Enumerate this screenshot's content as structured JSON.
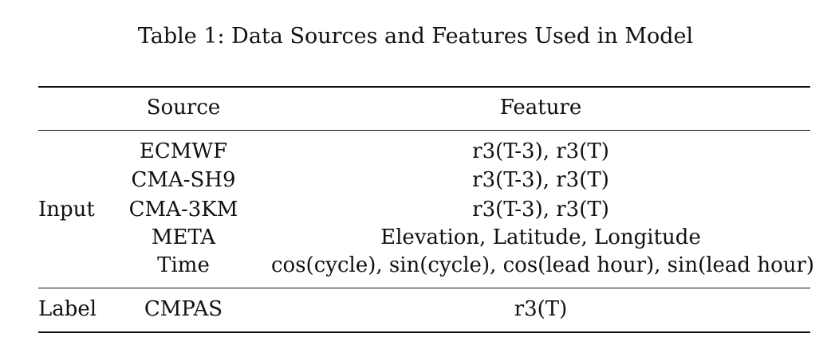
{
  "caption": "Table 1: Data Sources and Features Used in Model",
  "table": {
    "headers": {
      "source": "Source",
      "feature": "Feature"
    },
    "input_group": {
      "label": "Input",
      "rows": [
        {
          "source": "ECMWF",
          "feature": "r3(T-3), r3(T)"
        },
        {
          "source": "CMA-SH9",
          "feature": "r3(T-3), r3(T)"
        },
        {
          "source": "CMA-3KM",
          "feature": "r3(T-3), r3(T)"
        },
        {
          "source": "META",
          "feature": "Elevation, Latitude, Longitude"
        },
        {
          "source": "Time",
          "feature": "cos(cycle), sin(cycle), cos(lead hour), sin(lead hour)"
        }
      ]
    },
    "label_group": {
      "label": "Label",
      "rows": [
        {
          "source": "CMPAS",
          "feature": "r3(T)"
        }
      ]
    }
  }
}
